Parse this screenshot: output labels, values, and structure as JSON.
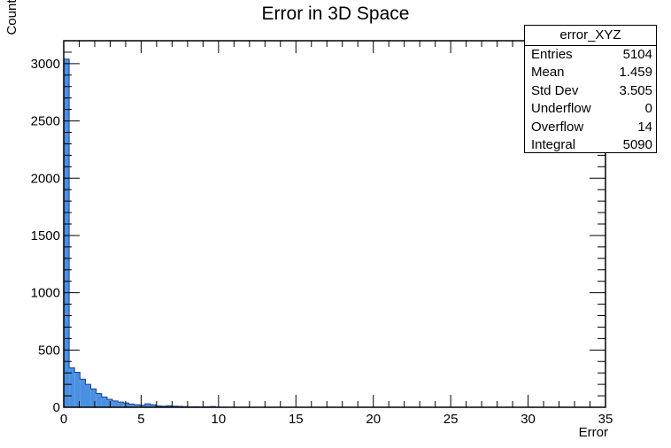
{
  "chart_data": {
    "type": "bar",
    "title": "Error in 3D Space",
    "xlabel": "Error",
    "ylabel": "Counts",
    "xlim": [
      0,
      35
    ],
    "ylim": [
      0,
      3200
    ],
    "grid": false,
    "fill_color": "#4a90e2",
    "line_color": "#1e3f8c",
    "bin_width": 0.35,
    "x_ticks": [
      "0",
      "5",
      "10",
      "15",
      "20",
      "25",
      "30",
      "35"
    ],
    "y_ticks": [
      "0",
      "500",
      "1000",
      "1500",
      "2000",
      "2500",
      "3000"
    ],
    "bins": [
      {
        "x": 0.0,
        "value": 3040
      },
      {
        "x": 0.35,
        "value": 345
      },
      {
        "x": 0.7,
        "value": 305
      },
      {
        "x": 1.05,
        "value": 245
      },
      {
        "x": 1.4,
        "value": 200
      },
      {
        "x": 1.75,
        "value": 160
      },
      {
        "x": 2.1,
        "value": 120
      },
      {
        "x": 2.45,
        "value": 90
      },
      {
        "x": 2.8,
        "value": 70
      },
      {
        "x": 3.15,
        "value": 55
      },
      {
        "x": 3.5,
        "value": 45
      },
      {
        "x": 3.85,
        "value": 38
      },
      {
        "x": 4.2,
        "value": 28
      },
      {
        "x": 4.55,
        "value": 22
      },
      {
        "x": 4.9,
        "value": 18
      },
      {
        "x": 5.25,
        "value": 30
      },
      {
        "x": 5.6,
        "value": 22
      },
      {
        "x": 5.95,
        "value": 12
      },
      {
        "x": 6.3,
        "value": 10
      },
      {
        "x": 6.65,
        "value": 14
      },
      {
        "x": 7.0,
        "value": 10
      },
      {
        "x": 7.35,
        "value": 8
      },
      {
        "x": 7.7,
        "value": 6
      },
      {
        "x": 8.05,
        "value": 4
      },
      {
        "x": 8.4,
        "value": 5
      },
      {
        "x": 8.75,
        "value": 3
      },
      {
        "x": 9.1,
        "value": 4
      },
      {
        "x": 9.45,
        "value": 7
      },
      {
        "x": 9.8,
        "value": 2
      },
      {
        "x": 10.15,
        "value": 1
      }
    ],
    "stats": {
      "name": "error_XYZ",
      "rows": [
        {
          "label": "Entries",
          "value": "5104"
        },
        {
          "label": "Mean",
          "value": "1.459"
        },
        {
          "label": "Std Dev",
          "value": "3.505"
        },
        {
          "label": "Underflow",
          "value": "0"
        },
        {
          "label": "Overflow",
          "value": "14"
        },
        {
          "label": "Integral",
          "value": "5090"
        }
      ]
    }
  }
}
